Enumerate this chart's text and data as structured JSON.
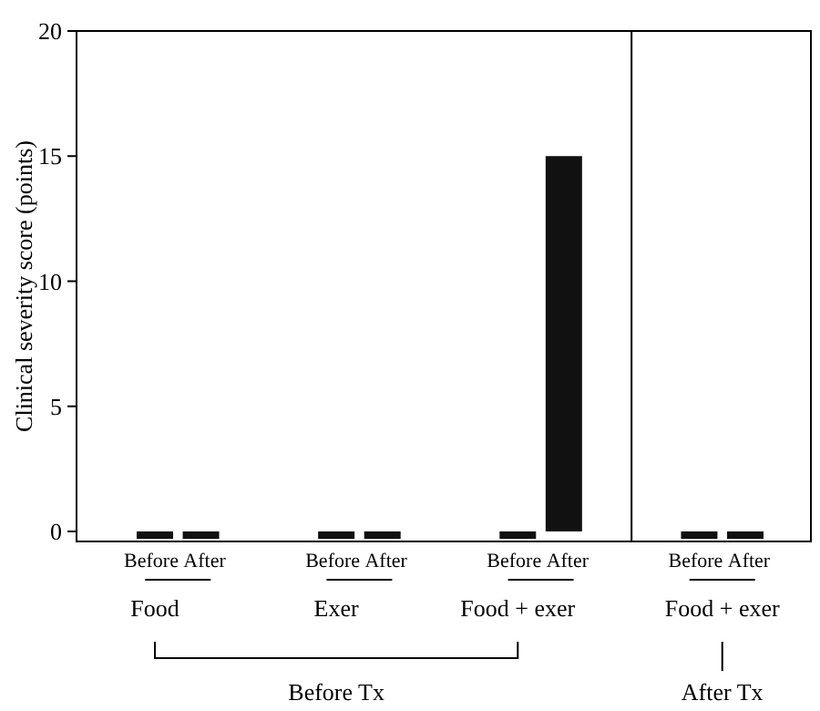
{
  "chart_data": {
    "type": "bar",
    "ylabel": "Clinical severity score (points)",
    "categories": [
      "Before",
      "After",
      "Before",
      "After",
      "Before",
      "After",
      "Before",
      "After"
    ],
    "values": [
      -0.3,
      -0.3,
      -0.3,
      -0.3,
      -0.3,
      15,
      -0.3,
      -0.3
    ],
    "color": "#111111",
    "ylim": [
      -0.4,
      20
    ],
    "yticks": [
      0,
      5,
      10,
      15,
      20
    ],
    "grid": false,
    "annotations": [
      "Food",
      "Exer",
      "Food + exer",
      "Food + exer",
      "Before Tx",
      "After Tx"
    ]
  }
}
